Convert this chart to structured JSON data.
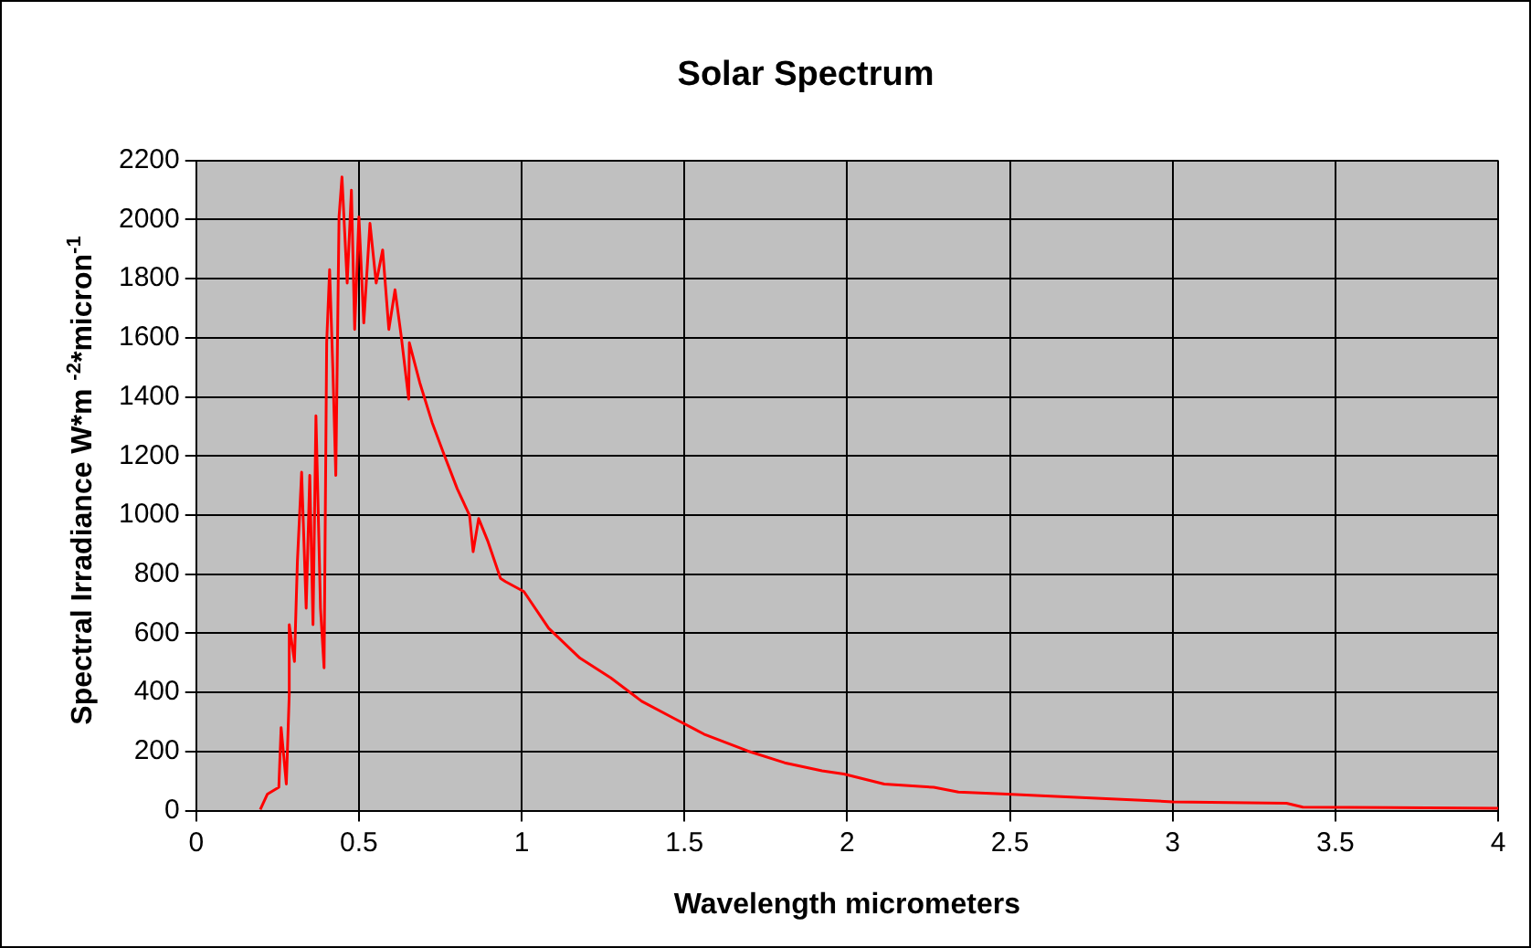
{
  "chart_data": {
    "type": "line",
    "title": "Solar Spectrum",
    "xlabel": "Wavelength micrometers",
    "ylabel": "Spectral Irradiance W*m $^{-2}$*micron$^{-1}$",
    "x": [
      0.197,
      0.219,
      0.254,
      0.261,
      0.277,
      0.286,
      0.286,
      0.302,
      0.311,
      0.324,
      0.338,
      0.349,
      0.359,
      0.368,
      0.382,
      0.393,
      0.401,
      0.41,
      0.42,
      0.429,
      0.439,
      0.448,
      0.464,
      0.477,
      0.487,
      0.5,
      0.515,
      0.534,
      0.553,
      0.573,
      0.592,
      0.611,
      0.63,
      0.653,
      0.655,
      0.687,
      0.725,
      0.763,
      0.802,
      0.84,
      0.851,
      0.868,
      0.897,
      0.935,
      0.95,
      1.007,
      1.083,
      1.179,
      1.274,
      1.369,
      1.465,
      1.56,
      1.694,
      1.808,
      1.923,
      1.99,
      2.114,
      2.266,
      2.342,
      2.476,
      2.61,
      3.0,
      3.35,
      3.4,
      4.0
    ],
    "series": [
      {
        "color": "#ff0000",
        "values": [
          4,
          56,
          79,
          281,
          90,
          393,
          629,
          505,
          842,
          1145,
          685,
          1134,
          629,
          1336,
          685,
          483,
          1583,
          1830,
          1493,
          1134,
          2009,
          2144,
          1785,
          2099,
          1628,
          2009,
          1650,
          1987,
          1785,
          1897,
          1628,
          1762,
          1605,
          1392,
          1583,
          1448,
          1313,
          1201,
          1089,
          999,
          876,
          988,
          909,
          786,
          775,
          741,
          617,
          516,
          449,
          370,
          314,
          259,
          202,
          162,
          135,
          124,
          90,
          79,
          63,
          57,
          50,
          30,
          25,
          12,
          8
        ]
      }
    ],
    "xlim": [
      0,
      4
    ],
    "xticks": [
      0,
      0.5,
      1,
      1.5,
      2,
      2.5,
      3,
      3.5,
      4
    ],
    "ylim": [
      0,
      2200
    ],
    "yticks": [
      0,
      200,
      400,
      600,
      800,
      1000,
      1200,
      1400,
      1600,
      1800,
      2000,
      2200
    ],
    "grid": true,
    "legend": false,
    "marker": "none",
    "line_style": "solid"
  }
}
